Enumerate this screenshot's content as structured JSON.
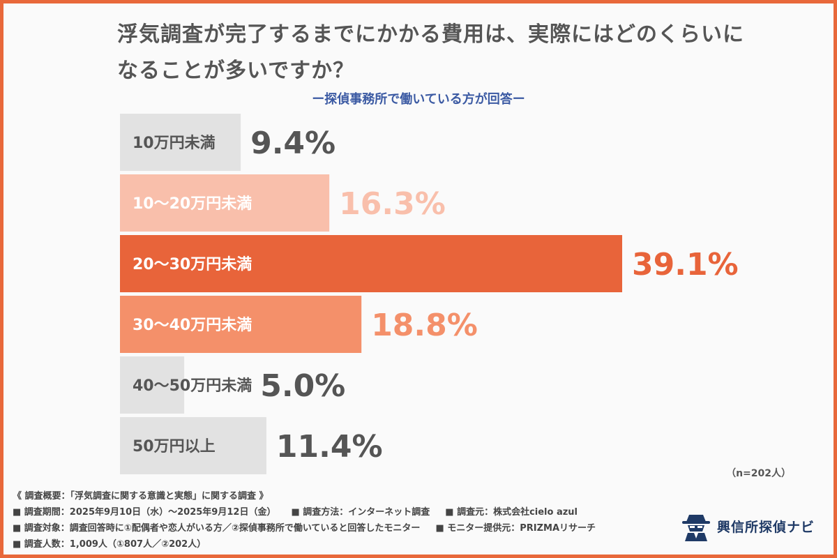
{
  "header": {
    "title_line1": "浮気調査が完了するまでにかかる費用は、実際にはどのくらいに",
    "title_line2": "なることが多いですか？",
    "subtitle": "ー探偵事務所で働いている方が回答ー"
  },
  "colors": {
    "frame": "#e8683a",
    "bar_highlight": "#e8643a",
    "bar_mid": "#f4906a",
    "bar_light": "#f9bfab",
    "bar_gray": "#e2e2e2",
    "text_gray": "#555555",
    "subtitle": "#3b5aa3"
  },
  "chart_data": {
    "type": "bar",
    "orientation": "horizontal",
    "categories": [
      "10万円未満",
      "10〜20万円未満",
      "20〜30万円未満",
      "30〜40万円未満",
      "40〜50万円未満",
      "50万円以上"
    ],
    "values": [
      9.4,
      16.3,
      39.1,
      18.8,
      5.0,
      11.4
    ],
    "value_labels": [
      "9.4%",
      "16.3%",
      "39.1%",
      "18.8%",
      "5.0%",
      "11.4%"
    ],
    "bar_colors": [
      "#e2e2e2",
      "#f9bfab",
      "#e8643a",
      "#f4906a",
      "#e2e2e2",
      "#e2e2e2"
    ],
    "label_colors": [
      "#555555",
      "#ffffff",
      "#ffffff",
      "#ffffff",
      "#555555",
      "#555555"
    ],
    "value_colors": [
      "#555555",
      "#f9bfab",
      "#e8643a",
      "#f4906a",
      "#555555",
      "#555555"
    ],
    "title": "浮気調査が完了するまでにかかる費用は、実際にはどのくらいになることが多いですか？",
    "xlabel": "",
    "ylabel": "",
    "xlim": [
      0,
      39.1
    ],
    "grid": false
  },
  "n_note": "（n=202人）",
  "footer": {
    "line1": "《 調査概要：「浮気調査に関する意識と実態」に関する調査 》",
    "line2": [
      "■ 調査期間：2025年9月10日（水）〜2025年9月12日（金）",
      "■ 調査方法：インターネット調査",
      "■ 調査元：株式会社cielo azul"
    ],
    "line3": [
      "■ 調査対象：調査回答時に①配偶者や恋人がいる方／②探偵事務所で働いていると回答したモニター",
      "■ モニター提供元：PRIZMAリサーチ"
    ],
    "line4": "■ 調査人数：1,009人（①807人／②202人）"
  },
  "logo": {
    "icon": "detective-icon",
    "text": "興信所探偵ナビ"
  }
}
